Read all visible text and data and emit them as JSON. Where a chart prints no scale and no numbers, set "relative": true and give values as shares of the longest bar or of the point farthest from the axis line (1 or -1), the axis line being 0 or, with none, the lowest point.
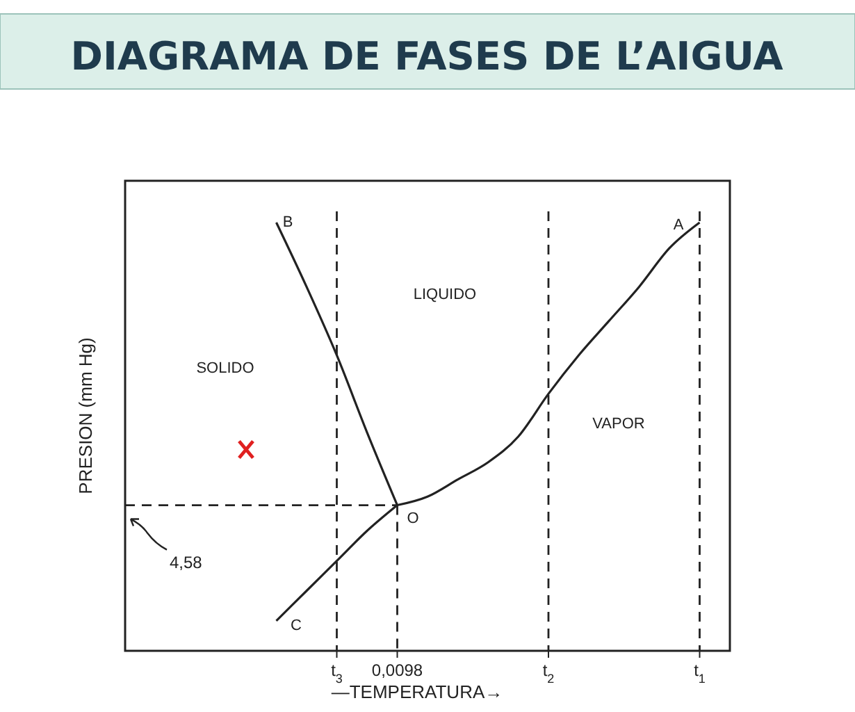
{
  "chart_data": {
    "type": "line",
    "title": "DIAGRAMA DE FASES DE L’AIGUA",
    "xlabel": "—TEMPERATURA→",
    "ylabel": "PRESION (mm Hg)",
    "relative": true,
    "line_style": "solid",
    "marker": "none",
    "categories": [
      null,
      null,
      null,
      null,
      null,
      null,
      null,
      "t$_{3}$",
      null,
      "0,0098",
      null,
      null,
      null,
      null,
      "t$_{2}$",
      null,
      null,
      null,
      null,
      "t$_{1}$",
      null
    ],
    "series": [
      {
        "color": "#222222",
        "values": [
          null,
          null,
          null,
          null,
          null,
          null,
          null,
          null,
          null,
          0.34,
          0.36,
          0.4,
          0.44,
          0.5,
          0.6,
          0.69,
          0.77,
          0.85,
          0.94,
          1,
          null
        ]
      },
      {
        "color": "#222222",
        "values": [
          null,
          null,
          null,
          null,
          null,
          1,
          0.85,
          0.69,
          0.51,
          0.34,
          null,
          null,
          null,
          null,
          null,
          null,
          null,
          null,
          null,
          null,
          null
        ]
      },
      {
        "color": "#222222",
        "values": [
          null,
          null,
          null,
          null,
          null,
          0.07,
          0.14,
          0.21,
          0.28,
          0.34,
          null,
          null,
          null,
          null,
          null,
          null,
          null,
          null,
          null,
          null,
          null
        ]
      },
      {
        "type": "scatter",
        "marker": "cross",
        "color": "#e02020",
        "values": [
          null,
          null,
          null,
          null,
          0.47,
          null,
          null,
          null,
          null,
          null,
          null,
          null,
          null,
          null,
          null,
          null,
          null,
          null,
          null,
          null,
          null
        ]
      }
    ],
    "ref_lines": [
      {
        "axis": "x",
        "value": "t$_{3}$",
        "line_style": "dashed"
      },
      {
        "axis": "x",
        "value": "t$_{2}$",
        "line_style": "dashed"
      },
      {
        "axis": "x",
        "value": "t$_{1}$",
        "line_style": "dashed"
      },
      {
        "axis": "y",
        "value": 0.34,
        "line_style": "dashed"
      },
      {
        "axis": "x",
        "value": "0,0098",
        "line_style": "dashed"
      }
    ],
    "annotations": [
      "A",
      "B",
      "C",
      "O",
      "SOLIDO",
      "LIQUIDO",
      "VAPOR",
      {
        "text": "4,58",
        "y": 0.34
      }
    ]
  }
}
